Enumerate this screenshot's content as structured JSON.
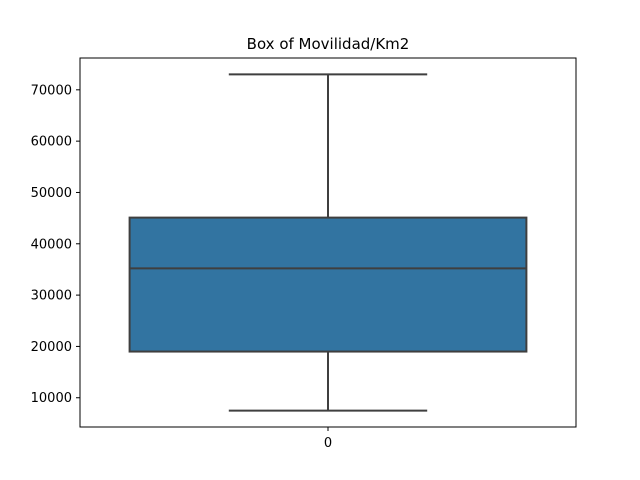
{
  "chart_data": {
    "type": "box",
    "title": "Box of Movilidad/Km2",
    "xlabel": "",
    "ylabel": "",
    "categories": [
      "0"
    ],
    "boxes": [
      {
        "category": "0",
        "whisker_low": 7500,
        "q1": 19000,
        "median": 35200,
        "q3": 45100,
        "whisker_high": 73000
      }
    ],
    "yticks": [
      10000,
      20000,
      30000,
      40000,
      50000,
      60000,
      70000
    ],
    "ylim": [
      4300,
      76200
    ],
    "grid": false,
    "box_color": "#3274a1",
    "line_color": "#3f3f3f"
  }
}
